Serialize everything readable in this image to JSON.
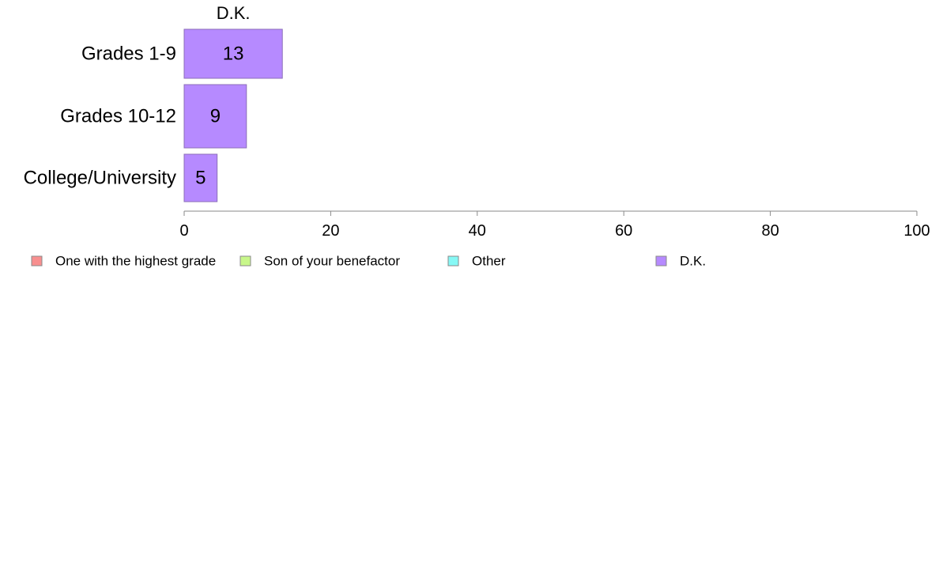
{
  "chart_data": {
    "type": "bar",
    "orientation": "horizontal",
    "stacked": true,
    "title": "",
    "xlabel": "",
    "ylabel": "",
    "xlim": [
      0,
      100
    ],
    "x_ticks": [
      0,
      20,
      40,
      60,
      80,
      100
    ],
    "grid": false,
    "legend_position": "bottom",
    "categories": [
      "Grades 1-9",
      "Grades 10-12",
      "College/University"
    ],
    "series": [
      {
        "name": "One with the highest grade",
        "color": "#f88f8f",
        "values": [
          0,
          0,
          0
        ]
      },
      {
        "name": "Son of your benefactor",
        "color": "#c8f78a",
        "values": [
          0,
          0,
          0
        ]
      },
      {
        "name": "Other",
        "color": "#86f8f5",
        "values": [
          0,
          0,
          0
        ]
      },
      {
        "name": "D.K.",
        "color": "#b68aff",
        "values": [
          13.4,
          8.5,
          4.5
        ],
        "labels": [
          "13",
          "9",
          "5"
        ]
      }
    ],
    "segment_header": "D.K."
  }
}
